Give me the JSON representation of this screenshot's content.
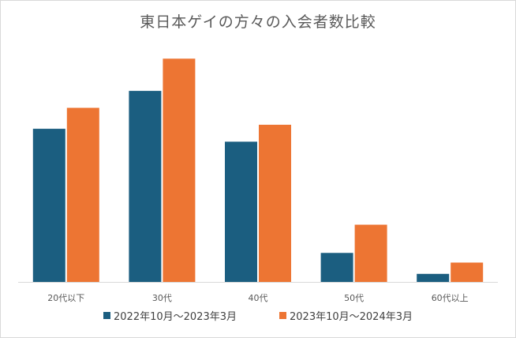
{
  "chart_data": {
    "type": "bar",
    "title": "東日本ゲイの方々の入会者数比較",
    "xlabel": "",
    "ylabel": "",
    "categories": [
      "20代以下",
      "30代",
      "40代",
      "50代",
      "60代以上"
    ],
    "series": [
      {
        "name": "2022年10月～2023年3月",
        "color": "#1b5e80",
        "values": [
          190,
          237,
          174,
          36,
          10
        ]
      },
      {
        "name": "2023年10月～2024年3月",
        "color": "#ed7533",
        "values": [
          216,
          277,
          195,
          71,
          24
        ]
      }
    ],
    "ylim": [
      0,
      290
    ],
    "y_axis_visible": false,
    "grid": false,
    "legend_position": "bottom"
  }
}
